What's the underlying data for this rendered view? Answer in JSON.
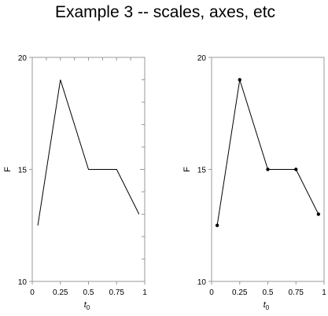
{
  "title": "Example 3 -- scales, axes, etc",
  "chart_data": [
    {
      "type": "line",
      "markers": false,
      "x": [
        0.05,
        0.25,
        0.5,
        0.75,
        0.95
      ],
      "y": [
        12.5,
        19,
        15,
        15,
        13
      ],
      "xlabel": "t",
      "xlabel_sub": "0",
      "ylabel": "F",
      "xlim": [
        0,
        1
      ],
      "ylim": [
        10,
        20
      ],
      "xticks": [
        0,
        0.25,
        0.5,
        0.75,
        1
      ],
      "xtick_labels": [
        "0",
        "0.25",
        "0.5",
        "0.75",
        "1"
      ],
      "yticks": [
        10,
        15,
        20
      ],
      "ytick_labels": [
        "10",
        "15",
        "20"
      ],
      "minor_ticks": true,
      "grid": false,
      "frame_color": "#999999",
      "line_color": "#000000"
    },
    {
      "type": "line",
      "markers": true,
      "x": [
        0.05,
        0.25,
        0.5,
        0.75,
        0.95
      ],
      "y": [
        12.5,
        19,
        15,
        15,
        13
      ],
      "xlabel": "t",
      "xlabel_sub": "0",
      "ylabel": "F",
      "xlim": [
        0,
        1
      ],
      "ylim": [
        10,
        20
      ],
      "xticks": [
        0,
        0.25,
        0.5,
        0.75,
        1
      ],
      "xtick_labels": [
        "0",
        "0.25",
        "0.5",
        "0.75",
        "1"
      ],
      "yticks": [
        10,
        15,
        20
      ],
      "ytick_labels": [
        "10",
        "15",
        "20"
      ],
      "minor_ticks": false,
      "grid": false,
      "frame_color": "#999999",
      "line_color": "#000000"
    }
  ]
}
